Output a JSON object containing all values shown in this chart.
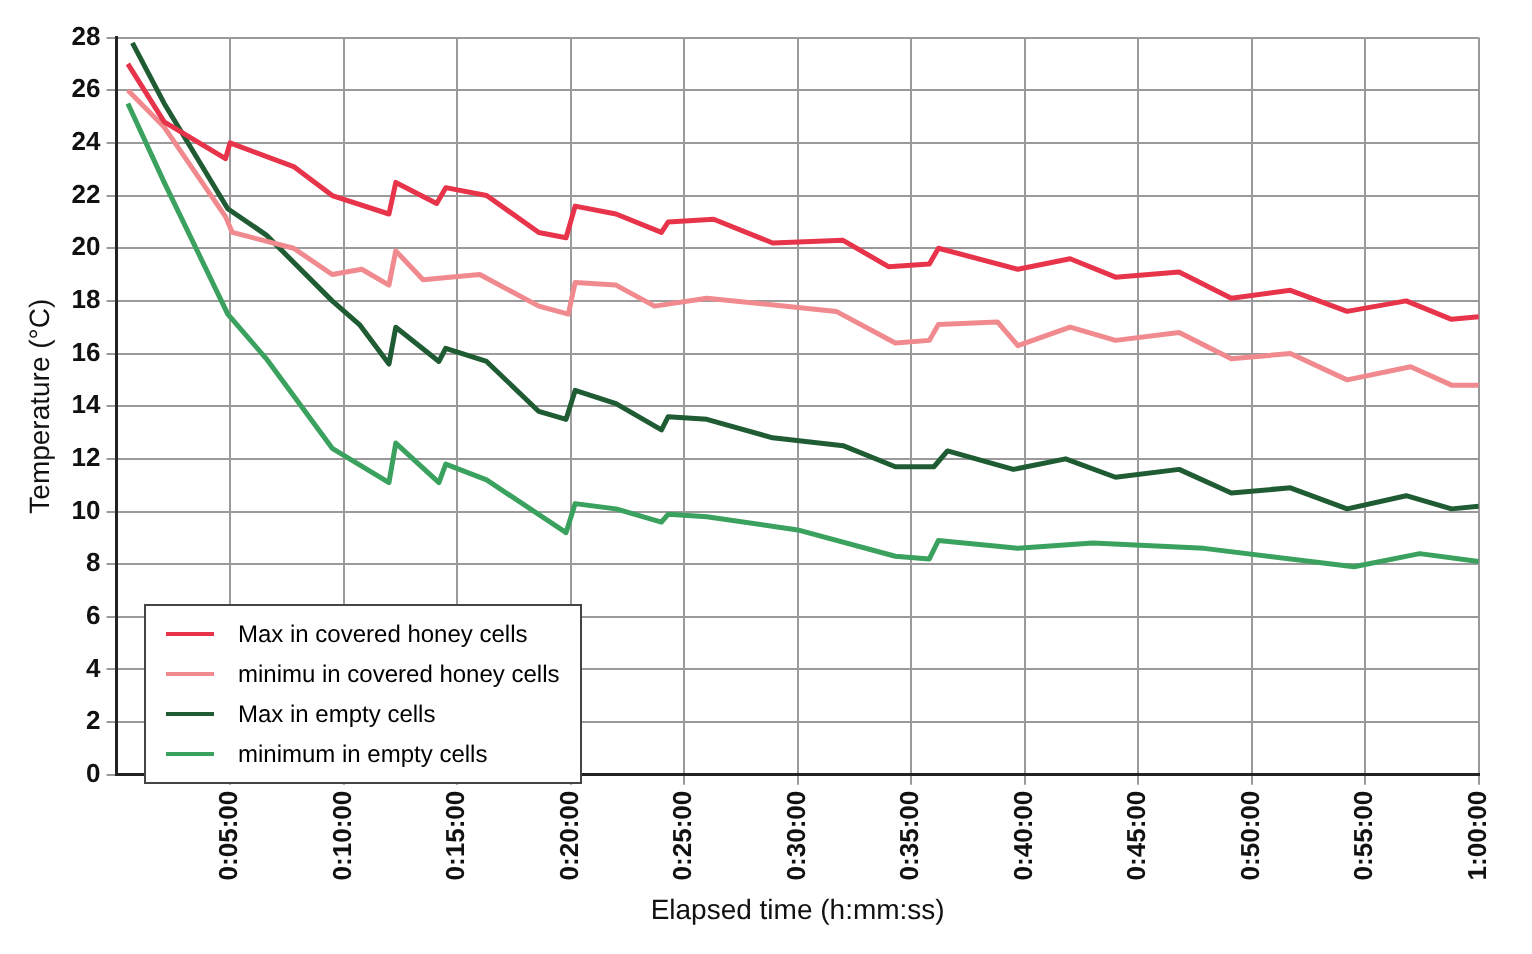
{
  "chart_data": {
    "type": "line",
    "xlabel": "Elapsed time (h:mm:ss)",
    "ylabel": "Temperature (°C)",
    "xlim": [
      0,
      60
    ],
    "xticks": [
      {
        "value": 5,
        "label": "0:05:00"
      },
      {
        "value": 10,
        "label": "0:10:00"
      },
      {
        "value": 15,
        "label": "0:15:00"
      },
      {
        "value": 20,
        "label": "0:20:00"
      },
      {
        "value": 25,
        "label": "0:25:00"
      },
      {
        "value": 30,
        "label": "0:30:00"
      },
      {
        "value": 35,
        "label": "0:35:00"
      },
      {
        "value": 40,
        "label": "0:40:00"
      },
      {
        "value": 45,
        "label": "0:45:00"
      },
      {
        "value": 50,
        "label": "0:50:00"
      },
      {
        "value": 55,
        "label": "0:55:00"
      },
      {
        "value": 60,
        "label": "1:00:00"
      }
    ],
    "ylim": [
      0,
      28
    ],
    "yticks": [
      0,
      2,
      4,
      6,
      8,
      10,
      12,
      14,
      16,
      18,
      20,
      22,
      24,
      26,
      28
    ],
    "grid": true,
    "legend": "bottom left",
    "marker": "none",
    "line_style": "solid",
    "series": [
      {
        "name": "Max in covered honey cells",
        "color": "#e8344a",
        "x": [
          0.5,
          2.1,
          4.8,
          5.0,
          7.8,
          9.5,
          12.0,
          12.3,
          14.1,
          14.5,
          16.3,
          18.6,
          19.8,
          20.2,
          22.0,
          24.0,
          24.3,
          26.3,
          28.9,
          32.0,
          34.0,
          35.8,
          36.2,
          39.7,
          42.0,
          44.0,
          46.8,
          49.1,
          51.7,
          54.2,
          56.8,
          58.8,
          60.0
        ],
        "values": [
          27.0,
          24.8,
          23.4,
          24.0,
          23.1,
          22.0,
          21.3,
          22.5,
          21.7,
          22.3,
          22.0,
          20.6,
          20.4,
          21.6,
          21.3,
          20.6,
          21.0,
          21.1,
          20.2,
          20.3,
          19.3,
          19.4,
          20.0,
          19.2,
          19.6,
          18.9,
          19.1,
          18.1,
          18.4,
          17.6,
          18.0,
          17.3,
          17.4
        ]
      },
      {
        "name": "minimu in covered honey cells",
        "color": "#f08a8e",
        "x": [
          0.5,
          2.1,
          4.8,
          5.1,
          7.8,
          9.5,
          10.8,
          12.0,
          12.3,
          13.5,
          16.0,
          18.6,
          19.9,
          20.2,
          22.0,
          23.7,
          26.0,
          31.7,
          34.3,
          35.8,
          36.2,
          38.8,
          39.7,
          42.0,
          44.0,
          46.8,
          49.1,
          51.7,
          54.2,
          57.0,
          58.8,
          60.0
        ],
        "values": [
          26.0,
          24.6,
          21.2,
          20.6,
          20.0,
          19.0,
          19.2,
          18.6,
          19.9,
          18.8,
          19.0,
          17.8,
          17.5,
          18.7,
          18.6,
          17.8,
          18.1,
          17.6,
          16.4,
          16.5,
          17.1,
          17.2,
          16.3,
          17.0,
          16.5,
          16.8,
          15.8,
          16.0,
          15.0,
          15.5,
          14.8,
          14.8
        ]
      },
      {
        "name": "Max in empty cells",
        "color": "#1f5c34",
        "x": [
          0.7,
          2.1,
          4.9,
          6.6,
          9.5,
          10.7,
          12.0,
          12.3,
          14.2,
          14.5,
          16.3,
          18.6,
          19.8,
          20.2,
          22.0,
          24.0,
          24.3,
          26.0,
          28.9,
          32.0,
          34.3,
          36.0,
          36.6,
          39.5,
          41.8,
          44.0,
          46.8,
          49.1,
          51.7,
          54.2,
          56.8,
          58.8,
          60.0
        ],
        "values": [
          27.8,
          25.5,
          21.5,
          20.5,
          18.0,
          17.1,
          15.6,
          17.0,
          15.7,
          16.2,
          15.7,
          13.8,
          13.5,
          14.6,
          14.1,
          13.1,
          13.6,
          13.5,
          12.8,
          12.5,
          11.7,
          11.7,
          12.3,
          11.6,
          12.0,
          11.3,
          11.6,
          10.7,
          10.9,
          10.1,
          10.6,
          10.1,
          10.2
        ]
      },
      {
        "name": "minimum in empty cells",
        "color": "#3aa25e",
        "x": [
          0.5,
          2.1,
          4.9,
          6.6,
          9.5,
          12.0,
          12.3,
          14.2,
          14.5,
          16.3,
          19.8,
          20.2,
          22.0,
          24.0,
          24.3,
          26.0,
          30.0,
          34.3,
          35.8,
          36.2,
          39.7,
          43.0,
          47.9,
          54.5,
          57.4,
          60.0
        ],
        "values": [
          25.5,
          22.5,
          17.5,
          15.8,
          12.4,
          11.1,
          12.6,
          11.1,
          11.8,
          11.2,
          9.2,
          10.3,
          10.1,
          9.6,
          9.9,
          9.8,
          9.3,
          8.3,
          8.2,
          8.9,
          8.6,
          8.8,
          8.6,
          7.9,
          8.4,
          8.1
        ]
      }
    ]
  }
}
